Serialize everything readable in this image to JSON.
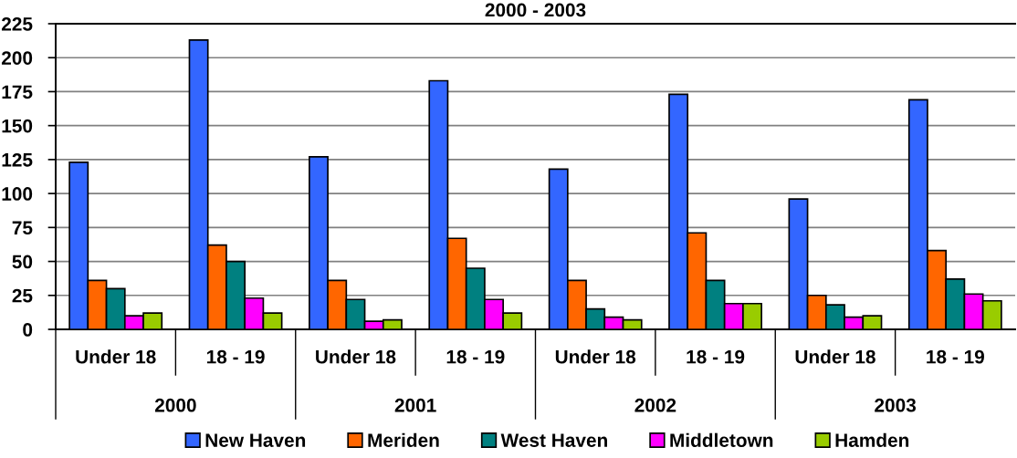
{
  "chart_data": {
    "type": "bar",
    "title": "2000 - 2003",
    "categories": [
      "Under 18",
      "18 - 19",
      "Under 18",
      "18 - 19",
      "Under 18",
      "18 - 19",
      "Under 18",
      "18 - 19"
    ],
    "annotations": [
      "2000",
      "2001",
      "2002",
      "2003"
    ],
    "series": [
      {
        "name": "New Haven",
        "color": "#3366ff",
        "values": [
          123,
          213,
          127,
          183,
          118,
          173,
          96,
          169
        ]
      },
      {
        "name": "Meriden",
        "color": "#ff6600",
        "values": [
          36,
          62,
          36,
          67,
          36,
          71,
          25,
          58
        ]
      },
      {
        "name": "West Haven",
        "color": "#008080",
        "values": [
          30,
          50,
          22,
          45,
          15,
          36,
          18,
          37
        ]
      },
      {
        "name": "Middletown",
        "color": "#ff00ff",
        "values": [
          10,
          23,
          6,
          22,
          9,
          19,
          9,
          26
        ]
      },
      {
        "name": "Hamden",
        "color": "#99cc00",
        "values": [
          12,
          12,
          7,
          12,
          7,
          19,
          10,
          21
        ]
      }
    ],
    "ylim": [
      0,
      225
    ],
    "yticks": [
      0,
      25,
      50,
      75,
      100,
      125,
      150,
      175,
      200,
      225
    ],
    "grid": "y",
    "legend": "bottom"
  }
}
